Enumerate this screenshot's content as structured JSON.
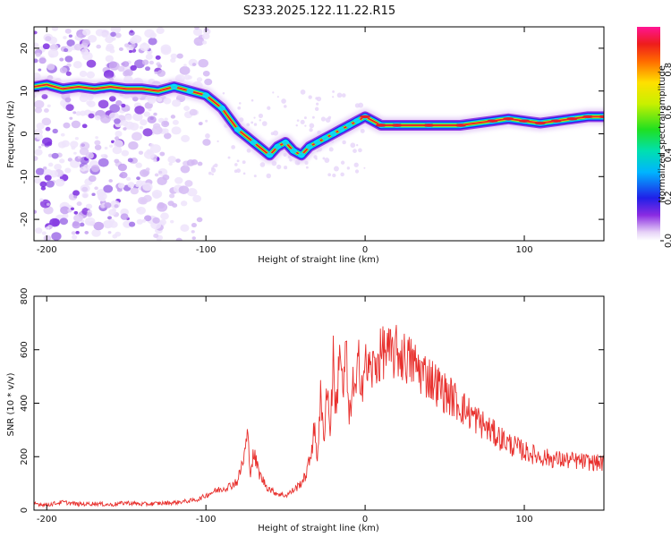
{
  "title": "S233.2025.122.11.22.R15",
  "colors": {
    "snr_line": "#e8302d",
    "ridge_core": "#e5202a",
    "background": "#ffffff"
  },
  "chart_data": [
    {
      "type": "heatmap",
      "xlabel": "Height of straight line (km)",
      "ylabel": "Frequency (Hz)",
      "xlim": [
        -208,
        150
      ],
      "ylim": [
        -25,
        25
      ],
      "x_ticks": [
        "-200",
        "-100",
        "0",
        "100"
      ],
      "x_tick_values": [
        -200,
        -100,
        0,
        100
      ],
      "y_ticks": [
        "20",
        "10",
        "0",
        "-10",
        "-20"
      ],
      "y_tick_values": [
        20,
        10,
        0,
        -10,
        -20
      ],
      "colorbar": {
        "label": "Normalized spectral amplitude",
        "ticks": [
          "0.0",
          "0.2",
          "0.4",
          "0.6",
          "0.8"
        ],
        "tick_values": [
          0.0,
          0.2,
          0.4,
          0.6,
          0.8
        ],
        "range": [
          0,
          1
        ]
      },
      "ridge": {
        "x": [
          -208,
          -200,
          -190,
          -180,
          -170,
          -160,
          -150,
          -140,
          -130,
          -120,
          -110,
          -100,
          -90,
          -80,
          -70,
          -60,
          -55,
          -50,
          -45,
          -40,
          -35,
          -30,
          -25,
          -20,
          -15,
          -10,
          -5,
          0,
          10,
          20,
          40,
          60,
          80,
          90,
          100,
          110,
          120,
          130,
          140,
          150
        ],
        "y": [
          11,
          11.5,
          10.5,
          11,
          10.5,
          11,
          10.5,
          10.5,
          10,
          11,
          10,
          9,
          6,
          1,
          -2,
          -5,
          -3,
          -2,
          -4,
          -5,
          -3,
          -2,
          -1,
          0,
          1,
          2,
          3,
          4,
          2,
          2,
          2,
          2,
          3,
          3.5,
          3,
          2.5,
          3,
          3.5,
          4,
          4
        ]
      }
    },
    {
      "type": "line",
      "xlabel": "Height of straight line (km)",
      "ylabel": "SNR (10 * v/v)",
      "xlim": [
        -208,
        150
      ],
      "ylim": [
        0,
        800
      ],
      "x_ticks": [
        "-200",
        "-100",
        "0",
        "100"
      ],
      "x_tick_values": [
        -200,
        -100,
        0,
        100
      ],
      "y_ticks": [
        "800",
        "600",
        "400",
        "200",
        "0"
      ],
      "y_tick_values": [
        800,
        600,
        400,
        200,
        0
      ],
      "series": [
        {
          "x": [
            -208,
            -200,
            -190,
            -180,
            -170,
            -160,
            -150,
            -140,
            -130,
            -120,
            -110,
            -105,
            -100,
            -95,
            -90,
            -85,
            -80,
            -76,
            -74,
            -72,
            -70,
            -66,
            -62,
            -58,
            -54,
            -50,
            -46,
            -42,
            -38,
            -35,
            -32,
            -30,
            -28,
            -26,
            -24,
            -22,
            -20,
            -18,
            -16,
            -14,
            -12,
            -10,
            -8,
            -6,
            -4,
            -2,
            0,
            4,
            8,
            12,
            16,
            20,
            25,
            30,
            35,
            40,
            45,
            50,
            55,
            60,
            70,
            80,
            90,
            100,
            110,
            120,
            130,
            140,
            150
          ],
          "y": [
            25,
            20,
            30,
            22,
            25,
            20,
            28,
            22,
            25,
            28,
            35,
            40,
            55,
            70,
            80,
            90,
            110,
            200,
            280,
            150,
            210,
            130,
            90,
            70,
            60,
            55,
            70,
            90,
            120,
            180,
            300,
            200,
            420,
            260,
            480,
            300,
            560,
            350,
            650,
            420,
            600,
            320,
            480,
            420,
            560,
            480,
            540,
            520,
            560,
            600,
            580,
            590,
            570,
            550,
            520,
            500,
            470,
            440,
            420,
            390,
            340,
            290,
            250,
            220,
            200,
            190,
            185,
            180,
            175
          ]
        }
      ]
    }
  ]
}
